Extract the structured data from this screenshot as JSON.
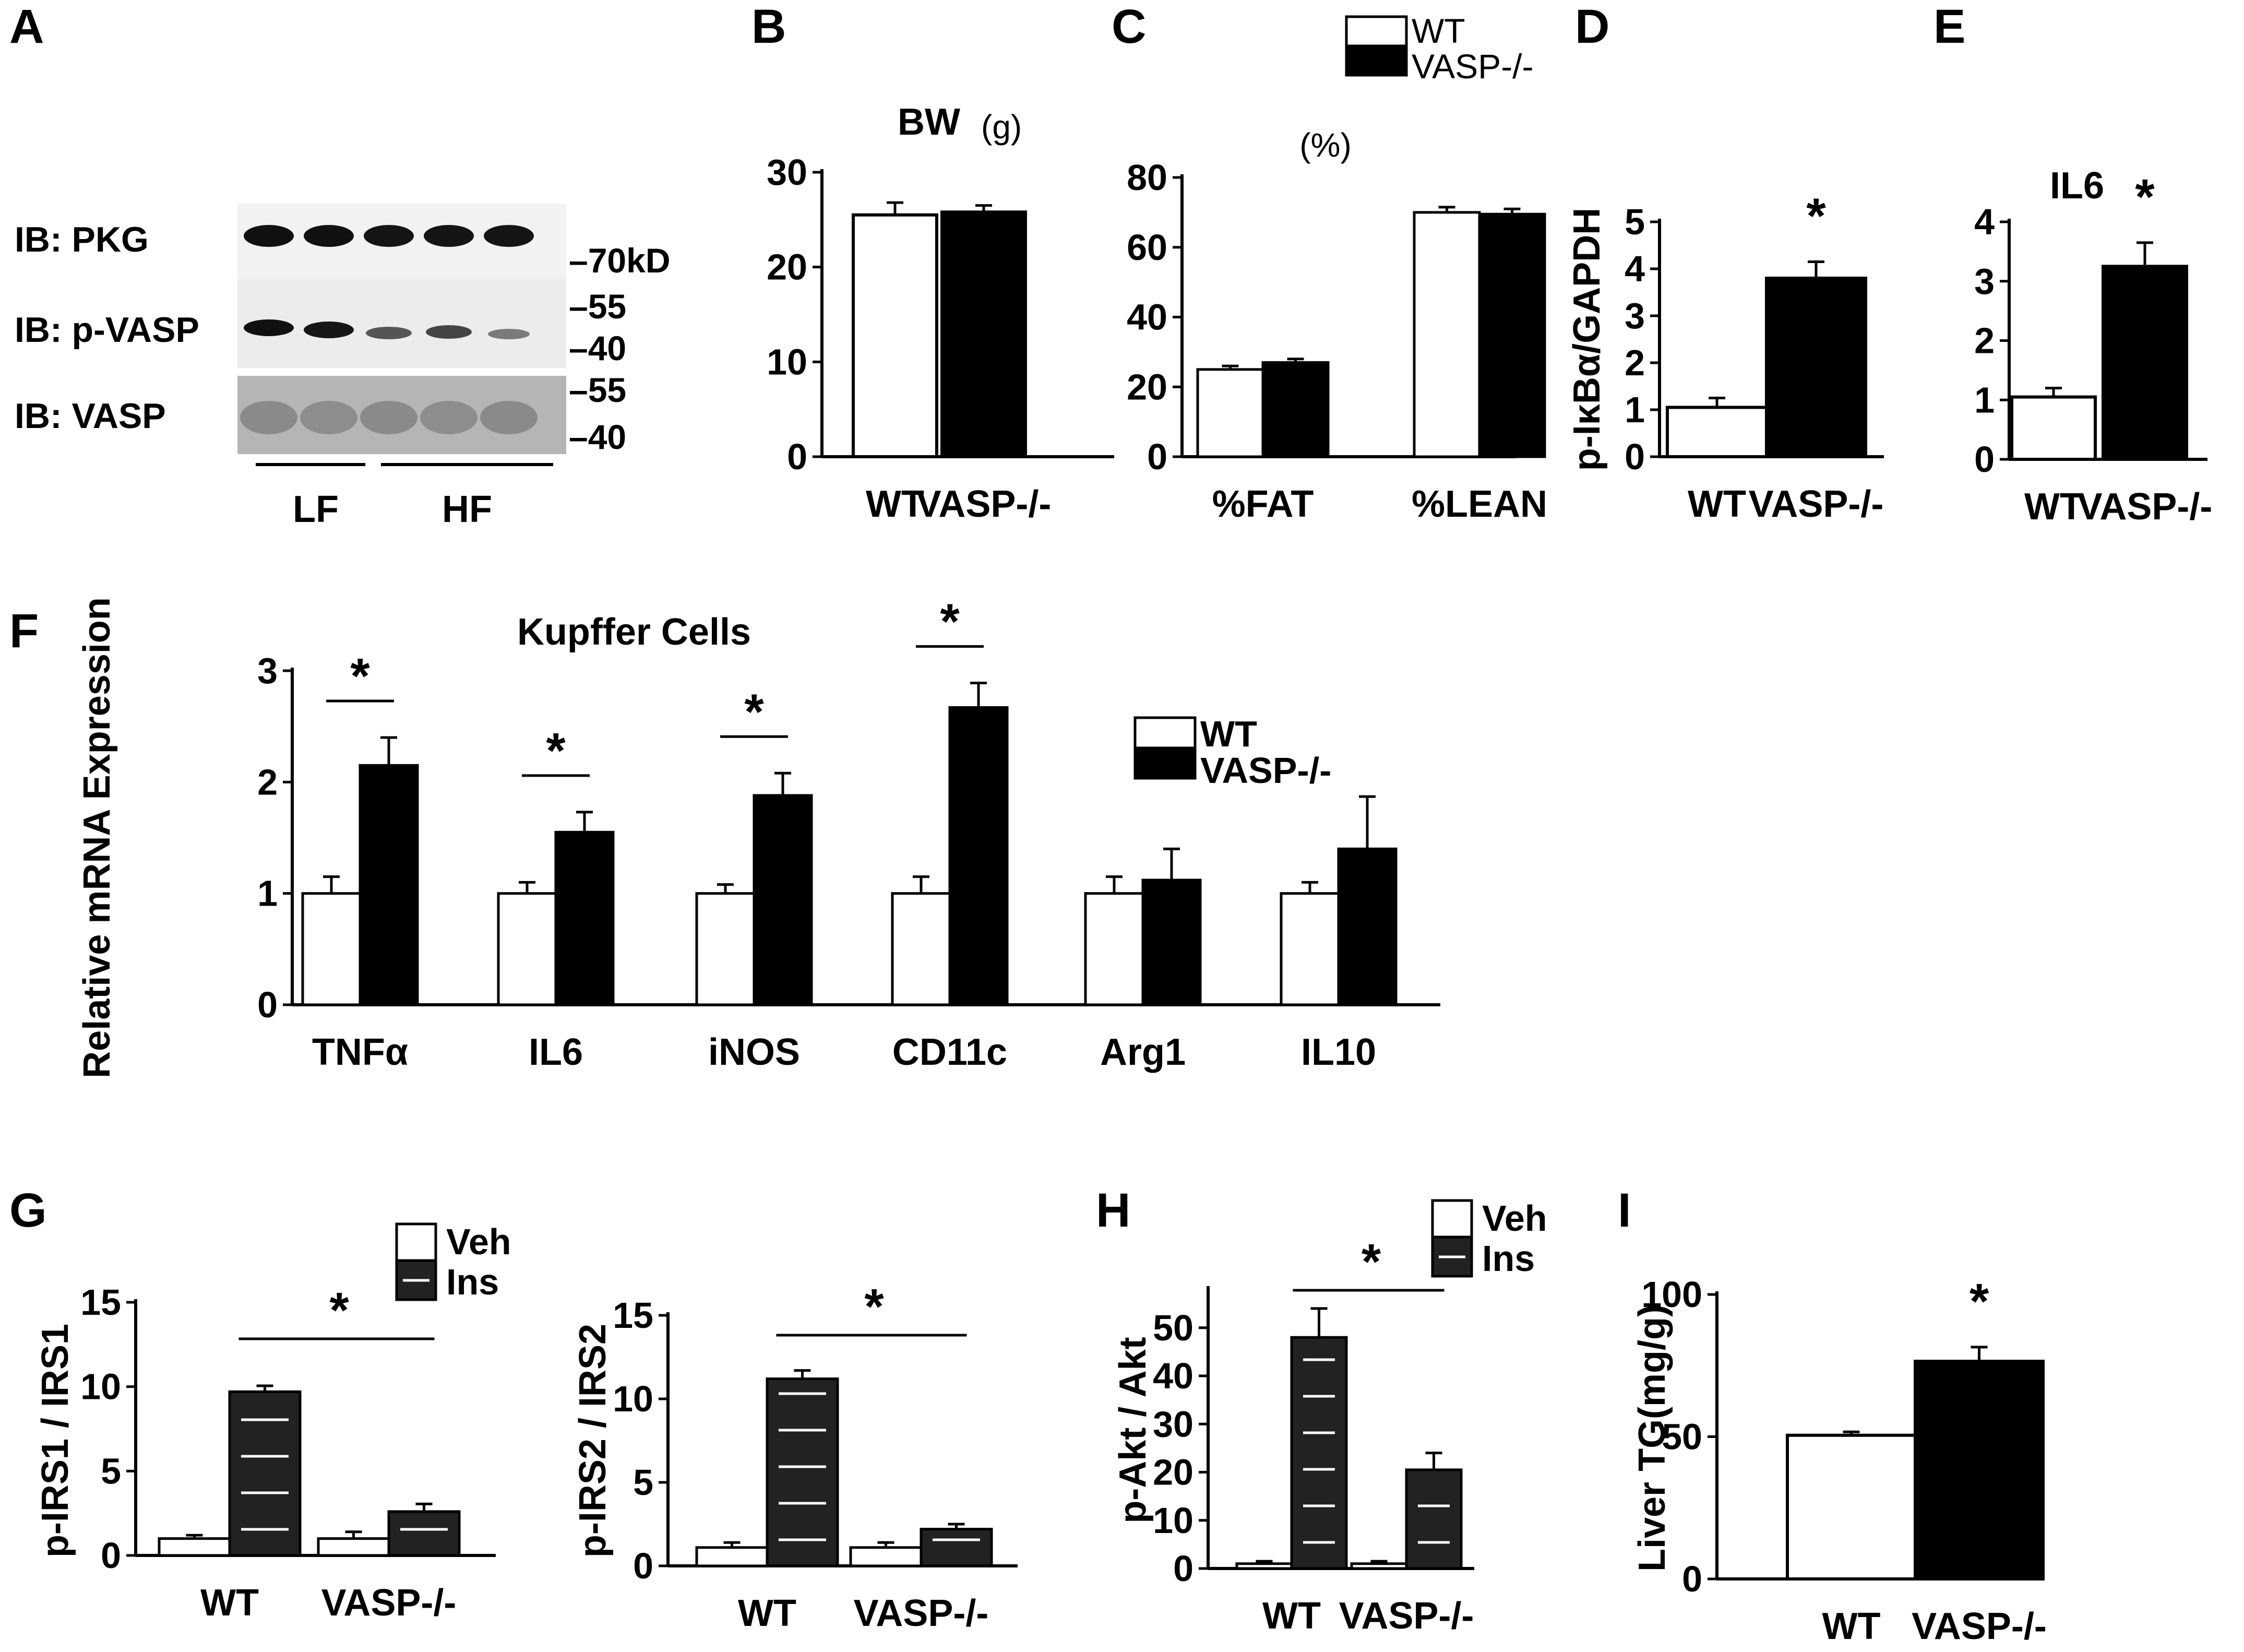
{
  "panels": {
    "A": "A",
    "B": "B",
    "C": "C",
    "D": "D",
    "E": "E",
    "F": "F",
    "G": "G",
    "H": "H",
    "I": "I"
  },
  "blot": {
    "rows": [
      "IB: PKG",
      "IB: p-VASP",
      "IB: VASP"
    ],
    "markers": [
      "–70kD",
      "–55",
      "–40",
      "–55",
      "–40"
    ],
    "groups": [
      "LF",
      "HF"
    ]
  },
  "colors": {
    "wt": "#ffffff",
    "vasp": "#000000",
    "ins": "#222222",
    "stripe": "#ffffff"
  },
  "chart_data": [
    {
      "id": "B",
      "type": "bar",
      "title": "BW",
      "title_unit": "(g)",
      "categories": [
        "WT",
        "VASP-/-"
      ],
      "values": [
        25.5,
        25.8
      ],
      "errors": [
        1.3,
        0.7
      ],
      "yticks": [
        0,
        10,
        20,
        30
      ],
      "ylim": [
        0,
        30
      ]
    },
    {
      "id": "C",
      "type": "bar",
      "title": "(%)",
      "categories": [
        "%FAT",
        "%LEAN"
      ],
      "series": [
        {
          "name": "WT",
          "values": [
            25,
            70
          ],
          "errors": [
            1,
            1.5
          ]
        },
        {
          "name": "VASP-/-",
          "values": [
            27,
            69.5
          ],
          "errors": [
            1,
            1.5
          ]
        }
      ],
      "legend": [
        "WT",
        "VASP-/-"
      ],
      "legend_position": "top",
      "yticks": [
        0,
        20,
        40,
        60,
        80
      ],
      "ylim": [
        0,
        80
      ]
    },
    {
      "id": "D",
      "type": "bar",
      "ylabel": "p-IκBα/GAPDH",
      "categories": [
        "WT",
        "VASP-/-"
      ],
      "values": [
        1.05,
        3.8
      ],
      "errors": [
        0.2,
        0.35
      ],
      "significance": "*",
      "yticks": [
        0,
        1,
        2,
        3,
        4,
        5
      ],
      "ylim": [
        0,
        5
      ]
    },
    {
      "id": "E",
      "type": "bar",
      "title": "IL6",
      "categories": [
        "WT",
        "VASP-/-"
      ],
      "values": [
        1.05,
        3.25
      ],
      "errors": [
        0.15,
        0.4
      ],
      "significance": "*",
      "yticks": [
        0,
        1,
        2,
        3,
        4
      ],
      "ylim": [
        0,
        4
      ]
    },
    {
      "id": "F",
      "type": "bar",
      "title": "Kupffer Cells",
      "ylabel": "Relative mRNA Expression",
      "categories": [
        "TNFα",
        "IL6",
        "iNOS",
        "CD11c",
        "Arg1",
        "IL10"
      ],
      "series": [
        {
          "name": "WT",
          "values": [
            1,
            1,
            1,
            1,
            1,
            1
          ],
          "errors": [
            0.15,
            0.1,
            0.08,
            0.15,
            0.15,
            0.1
          ]
        },
        {
          "name": "VASP-/-",
          "values": [
            2.15,
            1.55,
            1.88,
            2.67,
            1.12,
            1.4
          ],
          "errors": [
            0.25,
            0.18,
            0.2,
            0.22,
            0.28,
            0.47
          ]
        }
      ],
      "significance": [
        "*",
        "*",
        "*",
        "*",
        "",
        ""
      ],
      "legend": [
        "WT",
        "VASP-/-"
      ],
      "legend_position": "right",
      "yticks": [
        0,
        1,
        2,
        3
      ],
      "ylim": [
        0,
        3
      ]
    },
    {
      "id": "G1",
      "type": "bar",
      "ylabel": "p-IRS1 / IRS1",
      "categories": [
        "WT",
        "VASP-/-"
      ],
      "series": [
        {
          "name": "Veh",
          "values": [
            1,
            1
          ],
          "errors": [
            0.2,
            0.4
          ]
        },
        {
          "name": "Ins",
          "values": [
            9.7,
            2.6
          ],
          "errors": [
            0.35,
            0.45
          ]
        }
      ],
      "significance": "*",
      "legend": [
        "Veh",
        "Ins"
      ],
      "legend_position": "top-right",
      "yticks": [
        0,
        5,
        10,
        15
      ],
      "ylim": [
        0,
        15
      ]
    },
    {
      "id": "G2",
      "type": "bar",
      "ylabel": "p-IRS2 / IRS2",
      "categories": [
        "WT",
        "VASP-/-"
      ],
      "series": [
        {
          "name": "Veh",
          "values": [
            1.1,
            1.1
          ],
          "errors": [
            0.3,
            0.3
          ]
        },
        {
          "name": "Ins",
          "values": [
            11.2,
            2.2
          ],
          "errors": [
            0.5,
            0.3
          ]
        }
      ],
      "significance": "*",
      "yticks": [
        0,
        5,
        10,
        15
      ],
      "ylim": [
        0,
        15
      ]
    },
    {
      "id": "H",
      "type": "bar",
      "ylabel": "p-Akt / Akt",
      "categories": [
        "WT",
        "VASP-/-"
      ],
      "series": [
        {
          "name": "Veh",
          "values": [
            1,
            1
          ],
          "errors": [
            0.5,
            0.5
          ]
        },
        {
          "name": "Ins",
          "values": [
            48,
            20.5
          ],
          "errors": [
            6,
            3.5
          ]
        }
      ],
      "significance": "*",
      "legend": [
        "Veh",
        "Ins"
      ],
      "legend_position": "top-right",
      "yticks": [
        0,
        10,
        20,
        30,
        40,
        50
      ],
      "ylim": [
        0,
        58
      ]
    },
    {
      "id": "I",
      "type": "bar",
      "ylabel": "Liver TG(mg/g)",
      "categories": [
        "WT",
        "VASP-/-"
      ],
      "values": [
        50.5,
        76.5
      ],
      "errors": [
        1.2,
        5
      ],
      "significance": "*",
      "yticks": [
        0,
        50,
        100
      ],
      "ylim": [
        0,
        100
      ]
    }
  ]
}
